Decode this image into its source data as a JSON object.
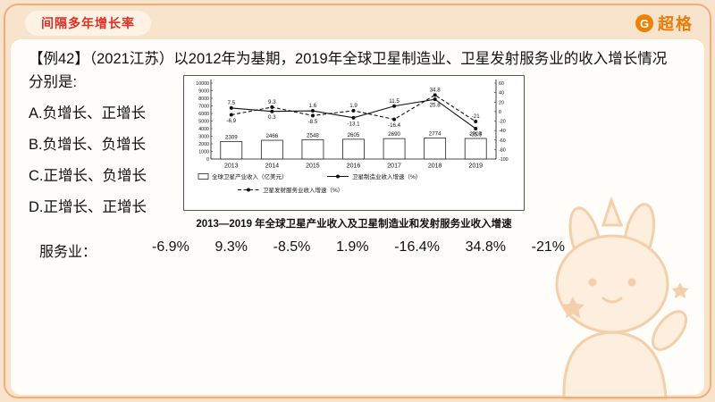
{
  "header": {
    "badge": "间隔多年增长率",
    "logo_text": "超格",
    "logo_icon": "G"
  },
  "colors": {
    "accent_red": "#dc3227",
    "brand_orange": "#ee8208",
    "frame_border": "#f2ad78",
    "page_bg": "#f8e3cc"
  },
  "question": {
    "line1": "【例42】（2021江苏）以2012年为基期，2019年全球卫星制造业、卫星发射服务业的收入增长情况",
    "line2": "分别是:",
    "options": [
      {
        "label": "A.负增长、正增长"
      },
      {
        "label": "B.负增长、负增长"
      },
      {
        "label": "C.正增长、负增长"
      },
      {
        "label": "D.正增长、正增长"
      }
    ]
  },
  "chart_data": {
    "type": "bar+line",
    "title": "2013—2019 年全球卫星产业收入及卫星制造业和发射服务业收入增速",
    "categories": [
      "2013",
      "2014",
      "2015",
      "2016",
      "2017",
      "2018",
      "2019"
    ],
    "bar_series": {
      "name": "全球卫星产业收入（亿美元）",
      "axis": "left",
      "values": [
        2309,
        2466,
        2548,
        2605,
        2690,
        2774,
        2707
      ]
    },
    "line_series": [
      {
        "name": "卫星制造业收入增速（%）",
        "axis": "right",
        "style": "solid",
        "values": [
          7.5,
          0.3,
          1.6,
          -13.1,
          11.5,
          25.8,
          -35.9
        ]
      },
      {
        "name": "卫星发射服务业收入增速（%）",
        "axis": "right",
        "style": "dashed",
        "values": [
          -6.9,
          9.3,
          -8.5,
          1.9,
          -16.4,
          34.8,
          -21
        ]
      }
    ],
    "left_axis": {
      "min": 0,
      "max": 10000,
      "step": 1000
    },
    "right_axis": {
      "min": -100,
      "max": 60,
      "step": 20
    },
    "grid": false,
    "legend_position": "bottom-inside"
  },
  "answer_row": {
    "label": "服务业：",
    "values": [
      "-6.9%",
      "9.3%",
      "-8.5%",
      "1.9%",
      "-16.4%",
      "34.8%",
      "-21%"
    ]
  }
}
